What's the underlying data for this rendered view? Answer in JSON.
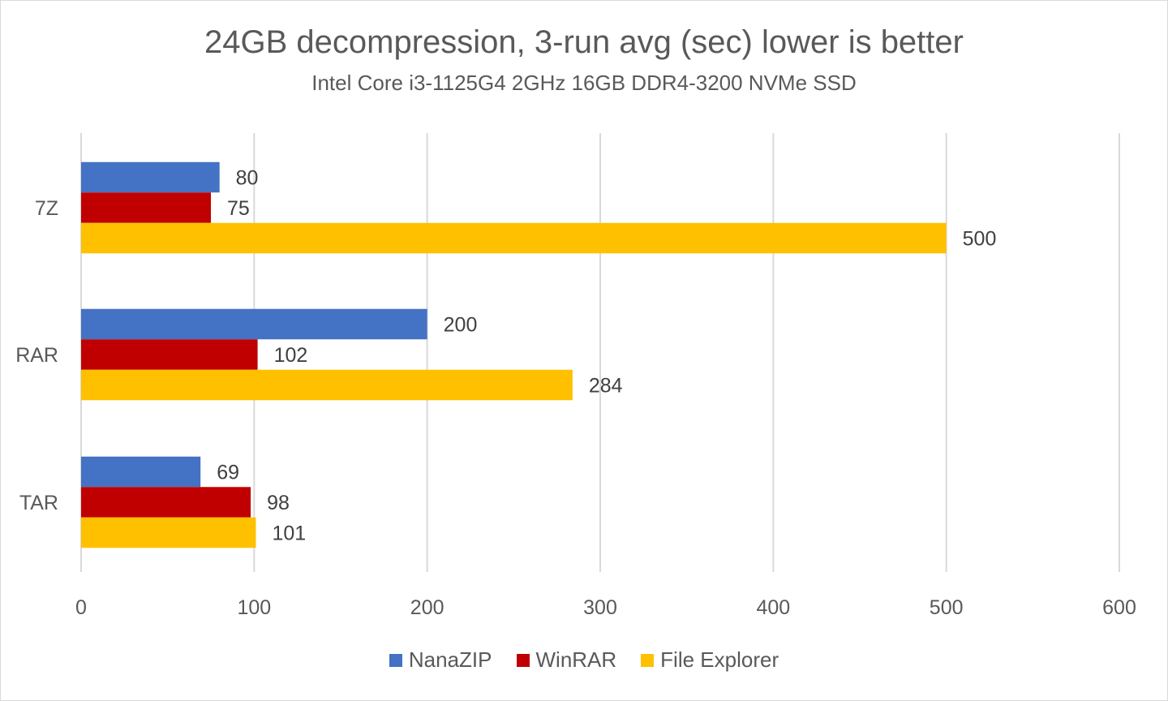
{
  "chart_data": {
    "type": "bar",
    "orientation": "horizontal",
    "title": "24GB decompression, 3-run avg (sec) lower is better",
    "subtitle": "Intel Core i3-1125G4 2GHz 16GB DDR4-3200 NVMe SSD",
    "xlabel": "",
    "ylabel": "",
    "categories": [
      "7Z",
      "RAR",
      "TAR"
    ],
    "series": [
      {
        "name": "NanaZIP",
        "color": "#4472c4",
        "values": [
          80,
          200,
          69
        ]
      },
      {
        "name": "WinRAR",
        "color": "#c00000",
        "values": [
          75,
          102,
          98
        ]
      },
      {
        "name": "File Explorer",
        "color": "#ffc000",
        "values": [
          500,
          284,
          101
        ]
      }
    ],
    "xlim": [
      0,
      600
    ],
    "xticks": [
      0,
      100,
      200,
      300,
      400,
      500,
      600
    ],
    "grid": true,
    "legend_position": "bottom",
    "data_labels": true
  }
}
